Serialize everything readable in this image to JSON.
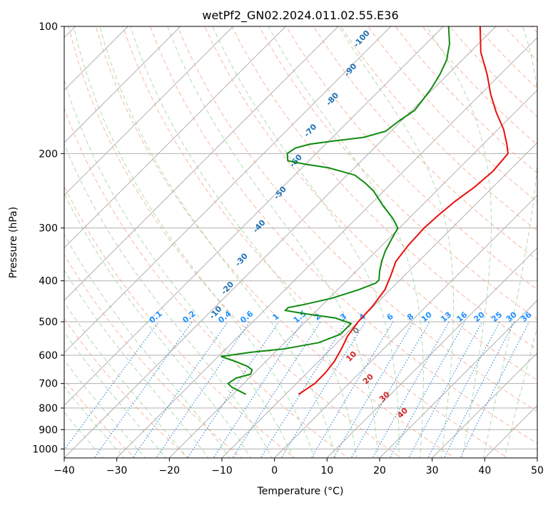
{
  "chart_data": {
    "type": "skew-t",
    "title": "wetPf2_GN02.2024.011.02.55.E36",
    "xlabel": "Temperature (°C)",
    "ylabel": "Pressure (hPa)",
    "xlim": [
      -40,
      50
    ],
    "ylim": [
      1050,
      100
    ],
    "y_scale": "log",
    "x_ticks": [
      "−40",
      "−30",
      "−20",
      "−10",
      "0",
      "10",
      "20",
      "30",
      "40",
      "50"
    ],
    "y_ticks": [
      {
        "p": 100,
        "label": "100"
      },
      {
        "p": 200,
        "label": "200"
      },
      {
        "p": 300,
        "label": "300"
      },
      {
        "p": 400,
        "label": "400"
      },
      {
        "p": 500,
        "label": "500"
      },
      {
        "p": 600,
        "label": "600"
      },
      {
        "p": 700,
        "label": "700"
      },
      {
        "p": 800,
        "label": "800"
      },
      {
        "p": 900,
        "label": "900"
      },
      {
        "p": 1000,
        "label": "1000"
      }
    ],
    "grid": true,
    "temperature_color": "#e8100c",
    "dewpoint_color": "#0f8a0f",
    "temperature": [
      {
        "p": 743,
        "t": -7.5
      },
      {
        "p": 720,
        "t": -7.0
      },
      {
        "p": 700,
        "t": -6.5
      },
      {
        "p": 660,
        "t": -6.5
      },
      {
        "p": 620,
        "t": -7.0
      },
      {
        "p": 580,
        "t": -8.0
      },
      {
        "p": 540,
        "t": -9.3
      },
      {
        "p": 500,
        "t": -10.0
      },
      {
        "p": 460,
        "t": -10.2
      },
      {
        "p": 420,
        "t": -11.0
      },
      {
        "p": 390,
        "t": -12.5
      },
      {
        "p": 360,
        "t": -14.3
      },
      {
        "p": 330,
        "t": -15.0
      },
      {
        "p": 300,
        "t": -15.3
      },
      {
        "p": 280,
        "t": -15.0
      },
      {
        "p": 260,
        "t": -14.5
      },
      {
        "p": 240,
        "t": -13.5
      },
      {
        "p": 220,
        "t": -13.0
      },
      {
        "p": 200,
        "t": -13.5
      },
      {
        "p": 190,
        "t": -15.5
      },
      {
        "p": 175,
        "t": -19.0
      },
      {
        "p": 160,
        "t": -23.5
      },
      {
        "p": 145,
        "t": -28.0
      },
      {
        "p": 130,
        "t": -32.5
      },
      {
        "p": 115,
        "t": -38.0
      },
      {
        "p": 100,
        "t": -43.0
      }
    ],
    "dewpoint": [
      {
        "p": 743,
        "t": -17.5
      },
      {
        "p": 732,
        "t": -19.0
      },
      {
        "p": 715,
        "t": -21.5
      },
      {
        "p": 700,
        "t": -23.0
      },
      {
        "p": 680,
        "t": -22.5
      },
      {
        "p": 665,
        "t": -20.5
      },
      {
        "p": 650,
        "t": -21.0
      },
      {
        "p": 638,
        "t": -22.5
      },
      {
        "p": 622,
        "t": -25.5
      },
      {
        "p": 613,
        "t": -27.5
      },
      {
        "p": 604,
        "t": -29.5
      },
      {
        "p": 600,
        "t": -28.0
      },
      {
        "p": 590,
        "t": -24.5
      },
      {
        "p": 580,
        "t": -19.0
      },
      {
        "p": 560,
        "t": -13.5
      },
      {
        "p": 535,
        "t": -11.0
      },
      {
        "p": 505,
        "t": -11.0
      },
      {
        "p": 490,
        "t": -15.0
      },
      {
        "p": 478,
        "t": -22.0
      },
      {
        "p": 470,
        "t": -26.0
      },
      {
        "p": 463,
        "t": -26.0
      },
      {
        "p": 455,
        "t": -23.5
      },
      {
        "p": 440,
        "t": -19.5
      },
      {
        "p": 420,
        "t": -16.0
      },
      {
        "p": 405,
        "t": -14.0
      },
      {
        "p": 398,
        "t": -14.0
      },
      {
        "p": 380,
        "t": -15.5
      },
      {
        "p": 360,
        "t": -17.0
      },
      {
        "p": 340,
        "t": -18.3
      },
      {
        "p": 320,
        "t": -19.3
      },
      {
        "p": 300,
        "t": -20.3
      },
      {
        "p": 285,
        "t": -23.0
      },
      {
        "p": 265,
        "t": -27.5
      },
      {
        "p": 245,
        "t": -32.0
      },
      {
        "p": 235,
        "t": -35.0
      },
      {
        "p": 225,
        "t": -38.5
      },
      {
        "p": 220,
        "t": -42.0
      },
      {
        "p": 216,
        "t": -45.0
      },
      {
        "p": 212,
        "t": -50.0
      },
      {
        "p": 208,
        "t": -54.0
      },
      {
        "p": 200,
        "t": -55.5
      },
      {
        "p": 194,
        "t": -55.0
      },
      {
        "p": 190,
        "t": -53.0
      },
      {
        "p": 187,
        "t": -49.5
      },
      {
        "p": 183,
        "t": -44.0
      },
      {
        "p": 177,
        "t": -41.0
      },
      {
        "p": 168,
        "t": -40.5
      },
      {
        "p": 158,
        "t": -39.5
      },
      {
        "p": 148,
        "t": -40.0
      },
      {
        "p": 140,
        "t": -40.5
      },
      {
        "p": 130,
        "t": -41.5
      },
      {
        "p": 120,
        "t": -43.0
      },
      {
        "p": 110,
        "t": -45.5
      },
      {
        "p": 100,
        "t": -49.0
      }
    ],
    "mixing_ratio_labels": [
      "0.1",
      "0.2",
      "0.4",
      "0.6",
      "1",
      "1.5",
      "2",
      "3",
      "4",
      "6",
      "8",
      "10",
      "13",
      "16",
      "20",
      "25",
      "30",
      "36"
    ],
    "dry_adiabat_labels": [
      "-100",
      "-90",
      "-80",
      "-70",
      "-60",
      "-50",
      "-40",
      "-30",
      "-20",
      "-10"
    ],
    "moist_adiabat_labels": [
      "0",
      "10",
      "20",
      "30",
      "40"
    ]
  }
}
